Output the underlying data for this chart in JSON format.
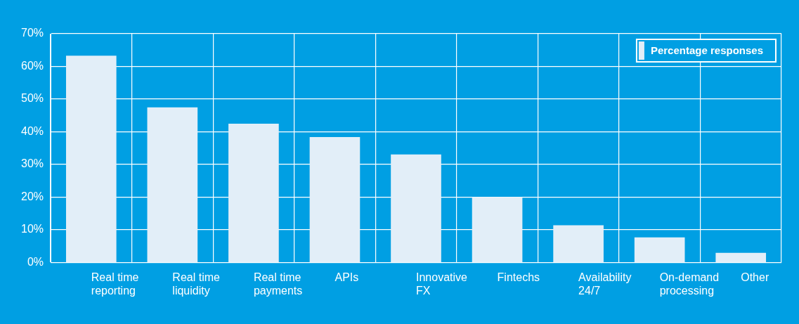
{
  "chart_data": {
    "type": "bar",
    "categories": [
      "Real time reporting",
      "Real time liquidity",
      "Real time payments",
      "APIs",
      "Innovative FX",
      "Fintechs",
      "Availability 24/7",
      "On-demand processing",
      "Other"
    ],
    "series": [
      {
        "name": "Percentage responses",
        "color": "#e2eef8",
        "values": [
          63.3,
          47.5,
          42.5,
          38.4,
          33.1,
          20,
          11.4,
          7.7,
          3
        ]
      }
    ],
    "ylim": [
      0,
      70
    ],
    "yticks": [
      {
        "value": 0,
        "label": "0%"
      },
      {
        "value": 10,
        "label": "10%"
      },
      {
        "value": 20,
        "label": "20%"
      },
      {
        "value": 30,
        "label": "30%"
      },
      {
        "value": 40,
        "label": "40%"
      },
      {
        "value": 50,
        "label": "50%"
      },
      {
        "value": 60,
        "label": "60%"
      },
      {
        "value": 70,
        "label": "70%"
      }
    ],
    "grid": true,
    "legend": "top right"
  }
}
